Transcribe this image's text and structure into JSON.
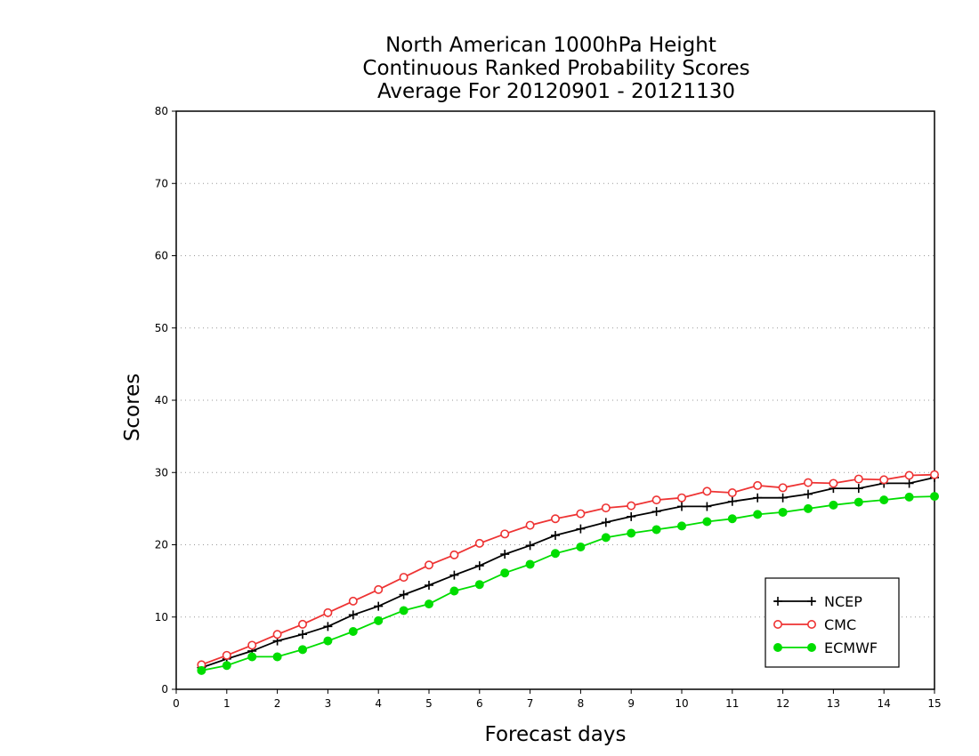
{
  "chart_data": {
    "type": "line",
    "title": [
      "North American 1000hPa Height",
      "Continuous Ranked Probability Scores",
      "Average For 20120901 - 20121130"
    ],
    "xlabel": "Forecast days",
    "ylabel": "Scores",
    "xlim": [
      0,
      15
    ],
    "ylim": [
      0,
      80
    ],
    "x_ticks": [
      0,
      1,
      2,
      3,
      4,
      5,
      6,
      7,
      8,
      9,
      10,
      11,
      12,
      13,
      14,
      15
    ],
    "y_ticks": [
      0,
      10,
      20,
      30,
      40,
      50,
      60,
      70,
      80
    ],
    "grid": "horizontal dotted",
    "legend": "bottom-right",
    "x": [
      0.5,
      1,
      1.5,
      2,
      2.5,
      3,
      3.5,
      4,
      4.5,
      5,
      5.5,
      6,
      6.5,
      7,
      7.5,
      8,
      8.5,
      9,
      9.5,
      10,
      10.5,
      11,
      11.5,
      12,
      12.5,
      13,
      13.5,
      14,
      14.5,
      15
    ],
    "series": [
      {
        "name": "NCEP",
        "color": "#000000",
        "marker": "plus",
        "values": [
          3.0,
          4.2,
          5.3,
          6.7,
          7.6,
          8.7,
          10.3,
          11.5,
          13.1,
          14.4,
          15.8,
          17.1,
          18.7,
          19.9,
          21.3,
          22.2,
          23.1,
          23.9,
          24.6,
          25.3,
          25.3,
          26.0,
          26.5,
          26.5,
          27.0,
          27.8,
          27.8,
          28.5,
          28.5,
          29.3
        ]
      },
      {
        "name": "CMC",
        "color": "#ee3333",
        "marker": "open-circle",
        "values": [
          3.4,
          4.7,
          6.1,
          7.6,
          9.0,
          10.6,
          12.2,
          13.8,
          15.5,
          17.2,
          18.6,
          20.2,
          21.5,
          22.7,
          23.6,
          24.3,
          25.1,
          25.4,
          26.2,
          26.5,
          27.4,
          27.2,
          28.2,
          27.9,
          28.6,
          28.5,
          29.1,
          29.0,
          29.6,
          29.7
        ]
      },
      {
        "name": "ECMWF",
        "color": "#00dd00",
        "marker": "filled-circle",
        "values": [
          2.6,
          3.3,
          4.5,
          4.5,
          5.5,
          6.7,
          8.0,
          9.5,
          10.9,
          11.8,
          13.6,
          14.5,
          16.1,
          17.3,
          18.8,
          19.7,
          21.0,
          21.6,
          22.1,
          22.6,
          23.2,
          23.6,
          24.2,
          24.5,
          25.0,
          25.5,
          25.9,
          26.2,
          26.6,
          26.7
        ]
      }
    ]
  }
}
